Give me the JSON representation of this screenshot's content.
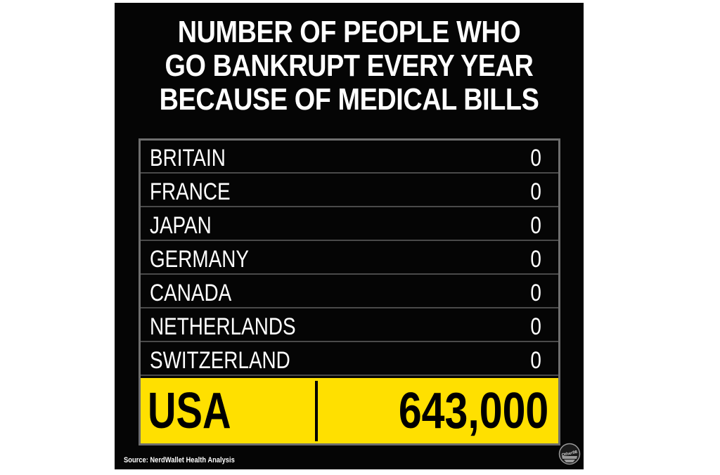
{
  "chart_data": {
    "type": "table",
    "title_lines": [
      "NUMBER OF PEOPLE WHO",
      "GO BANKRUPT EVERY YEAR",
      "BECAUSE OF MEDICAL BILLS"
    ],
    "rows": [
      {
        "country": "BRITAIN",
        "value": "0"
      },
      {
        "country": "FRANCE",
        "value": "0"
      },
      {
        "country": "JAPAN",
        "value": "0"
      },
      {
        "country": "GERMANY",
        "value": "0"
      },
      {
        "country": "CANADA",
        "value": "0"
      },
      {
        "country": "NETHERLANDS",
        "value": "0"
      },
      {
        "country": "SWITZERLAND",
        "value": "0"
      }
    ],
    "highlight": {
      "country": "USA",
      "value": "643,000"
    },
    "source": "Source: NerdWallet Health Analysis",
    "logo_text": "Other98",
    "colors": {
      "background": "#050505",
      "highlight": "#ffe000",
      "text": "#ffffff",
      "border": "#6e6e6e"
    }
  }
}
